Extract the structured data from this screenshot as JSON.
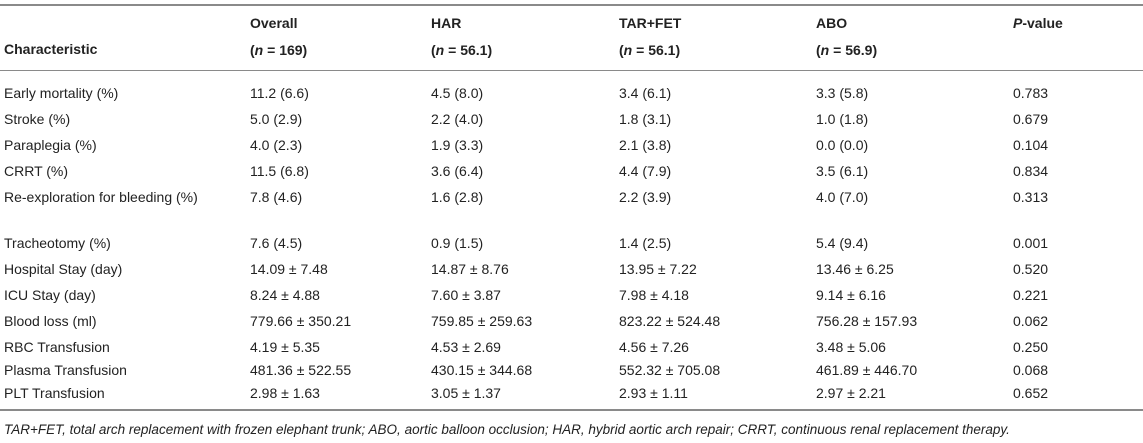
{
  "table": {
    "headers": {
      "characteristic": "Characteristic",
      "overall": {
        "label": "Overall",
        "n_prefix": "(",
        "n_var": "n",
        "n_value": " = 169)"
      },
      "har": {
        "label": "HAR",
        "n_prefix": "(",
        "n_var": "n",
        "n_value": " = 56.1)"
      },
      "tar_fet": {
        "label": "TAR+FET",
        "n_prefix": "(",
        "n_var": "n",
        "n_value": " = 56.1)"
      },
      "abo": {
        "label": "ABO",
        "n_prefix": "(",
        "n_var": "n",
        "n_value": " = 56.9)"
      },
      "pvalue": {
        "italic": "P",
        "rest": "-value"
      }
    },
    "rows": [
      {
        "label": "Early mortality (%)",
        "overall": "11.2 (6.6)",
        "har": "4.5 (8.0)",
        "tar_fet": "3.4 (6.1)",
        "abo": "3.3 (5.8)",
        "p": "0.783"
      },
      {
        "label": "Stroke (%)",
        "overall": "5.0 (2.9)",
        "har": "2.2 (4.0)",
        "tar_fet": "1.8 (3.1)",
        "abo": "1.0 (1.8)",
        "p": "0.679"
      },
      {
        "label": "Paraplegia (%)",
        "overall": "4.0 (2.3)",
        "har": "1.9 (3.3)",
        "tar_fet": "2.1 (3.8)",
        "abo": "0.0 (0.0)",
        "p": "0.104"
      },
      {
        "label": "CRRT (%)",
        "overall": "11.5 (6.8)",
        "har": "3.6 (6.4)",
        "tar_fet": "4.4 (7.9)",
        "abo": "3.5 (6.1)",
        "p": "0.834"
      },
      {
        "label": "Re-exploration for bleeding (%)",
        "overall": "7.8 (4.6)",
        "har": "1.6 (2.8)",
        "tar_fet": "2.2 (3.9)",
        "abo": "4.0 (7.0)",
        "p": "0.313"
      },
      {
        "label": "Tracheotomy (%)",
        "overall": "7.6 (4.5)",
        "har": "0.9 (1.5)",
        "tar_fet": "1.4 (2.5)",
        "abo": "5.4 (9.4)",
        "p": "0.001"
      },
      {
        "label": "Hospital Stay (day)",
        "overall": "14.09 ± 7.48",
        "har": "14.87 ± 8.76",
        "tar_fet": "13.95 ± 7.22",
        "abo": "13.46 ± 6.25",
        "p": "0.520"
      },
      {
        "label": "ICU Stay (day)",
        "overall": "8.24 ± 4.88",
        "har": "7.60 ± 3.87",
        "tar_fet": "7.98 ± 4.18",
        "abo": "9.14 ± 6.16",
        "p": "0.221"
      },
      {
        "label": "Blood loss (ml)",
        "overall": "779.66 ± 350.21",
        "har": "759.85 ± 259.63",
        "tar_fet": "823.22 ± 524.48",
        "abo": "756.28 ± 157.93",
        "p": "0.062"
      },
      {
        "label": "RBC Transfusion",
        "overall": "4.19 ± 5.35",
        "har": "4.53 ± 2.69",
        "tar_fet": "4.56 ± 7.26",
        "abo": "3.48 ± 5.06",
        "p": "0.250"
      },
      {
        "label": "Plasma Transfusion",
        "overall": "481.36 ± 522.55",
        "har": "430.15 ± 344.68",
        "tar_fet": "552.32 ± 705.08",
        "abo": "461.89 ± 446.70",
        "p": "0.068"
      },
      {
        "label": "PLT Transfusion",
        "overall": "2.98 ± 1.63",
        "har": "3.05 ± 1.37",
        "tar_fet": "2.93 ± 1.11",
        "abo": "2.97 ± 2.21",
        "p": "0.652"
      }
    ],
    "footnote": "TAR+FET, total arch replacement with frozen elephant trunk; ABO, aortic balloon occlusion; HAR, hybrid aortic arch repair; CRRT, continuous renal replacement therapy."
  }
}
